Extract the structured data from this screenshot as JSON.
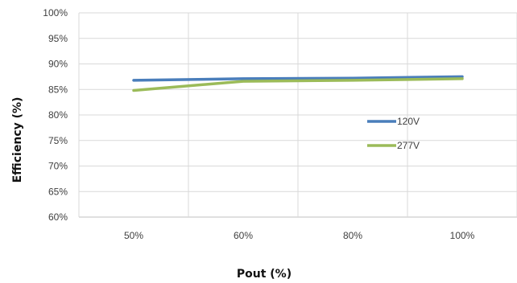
{
  "chart_data": {
    "type": "line",
    "title": "",
    "xlabel": "Pout (%)",
    "ylabel": "Efficiency (%)",
    "categories": [
      "50%",
      "60%",
      "80%",
      "100%"
    ],
    "y_ticks": [
      "60%",
      "65%",
      "70%",
      "75%",
      "80%",
      "85%",
      "90%",
      "95%",
      "100%"
    ],
    "ylim": [
      60,
      100
    ],
    "y_step": 5,
    "grid": true,
    "legend_position": "right-inside",
    "series": [
      {
        "name": "120V",
        "color": "#4a7ebb",
        "values": [
          86.8,
          87.1,
          87.2,
          87.5
        ]
      },
      {
        "name": "277V",
        "color": "#9bbb59",
        "values": [
          84.8,
          86.6,
          86.8,
          87.1
        ]
      }
    ]
  }
}
